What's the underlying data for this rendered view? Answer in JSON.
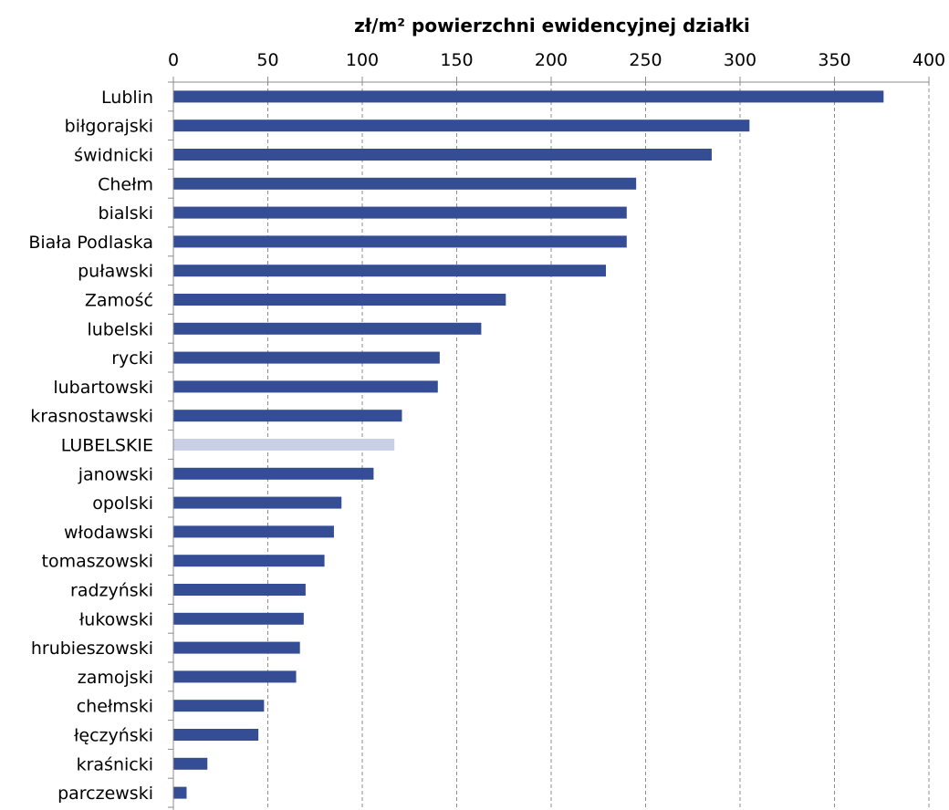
{
  "chart_data": {
    "type": "bar",
    "orientation": "horizontal",
    "xlabel": "zł/m² powierzchni ewidencyjnej działki",
    "xlim": [
      0,
      400
    ],
    "xticks": [
      0,
      50,
      100,
      150,
      200,
      250,
      300,
      350,
      400
    ],
    "grid": true,
    "legend": "none",
    "bar_color": "#344d94",
    "highlight_color": "#c9d0e3",
    "highlight_category": "LUBELSKIE",
    "categories": [
      "Lublin",
      "biłgorajski",
      "świdnicki",
      "Chełm",
      "bialski",
      "Biała Podlaska",
      "puławski",
      "Zamość",
      "lubelski",
      "rycki",
      "lubartowski",
      "krasnostawski",
      "LUBELSKIE",
      "janowski",
      "opolski",
      "włodawski",
      "tomaszowski",
      "radzyński",
      "łukowski",
      "hrubieszowski",
      "zamojski",
      "chełmski",
      "łęczyński",
      "kraśnicki",
      "parczewski"
    ],
    "values": [
      376,
      305,
      285,
      245,
      240,
      240,
      229,
      176,
      163,
      141,
      140,
      121,
      117,
      106,
      89,
      85,
      80,
      70,
      69,
      67,
      65,
      48,
      45,
      18,
      7
    ]
  }
}
